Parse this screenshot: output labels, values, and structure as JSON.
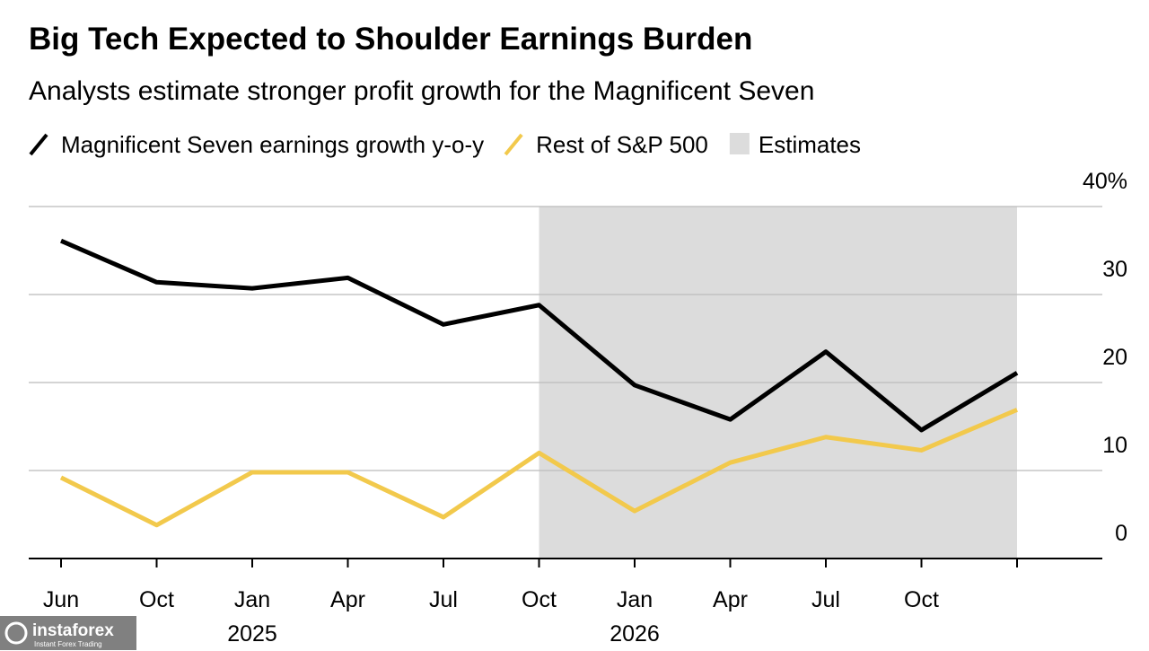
{
  "chart_data": {
    "type": "line",
    "title": "Big Tech Expected to Shoulder Earnings Burden",
    "subtitle": "Analysts estimate stronger profit growth for the Magnificent Seven",
    "categories": [
      "Jun",
      "Oct",
      "Jan",
      "Apr",
      "Jul",
      "Oct",
      "Jan",
      "Apr",
      "Jul",
      "Oct",
      null
    ],
    "years": [
      null,
      null,
      "2025",
      null,
      null,
      null,
      "2026",
      null,
      null,
      null,
      null
    ],
    "series": [
      {
        "name": "Magnificent Seven earnings growth y-o-y",
        "color": "#000000",
        "values": [
          36.1,
          31.4,
          30.7,
          31.9,
          26.6,
          28.8,
          19.7,
          15.8,
          23.5,
          14.6,
          21.1
        ]
      },
      {
        "name": "Rest of S&P 500",
        "color": "#f2c94c",
        "values": [
          9.2,
          3.8,
          9.8,
          9.8,
          4.7,
          12.0,
          5.4,
          10.9,
          13.8,
          12.3,
          16.9
        ]
      }
    ],
    "shaded": {
      "name": "Estimates",
      "color": "#dcdcdc",
      "from_index": 5,
      "to_index": 10
    },
    "ylim": [
      0,
      40
    ],
    "yticks": [
      0,
      10,
      20,
      30,
      {
        "value": 40,
        "label": "40%"
      }
    ],
    "grid": true,
    "watermark": {
      "name": "instaforex",
      "tagline": "Instant Forex Trading"
    }
  }
}
